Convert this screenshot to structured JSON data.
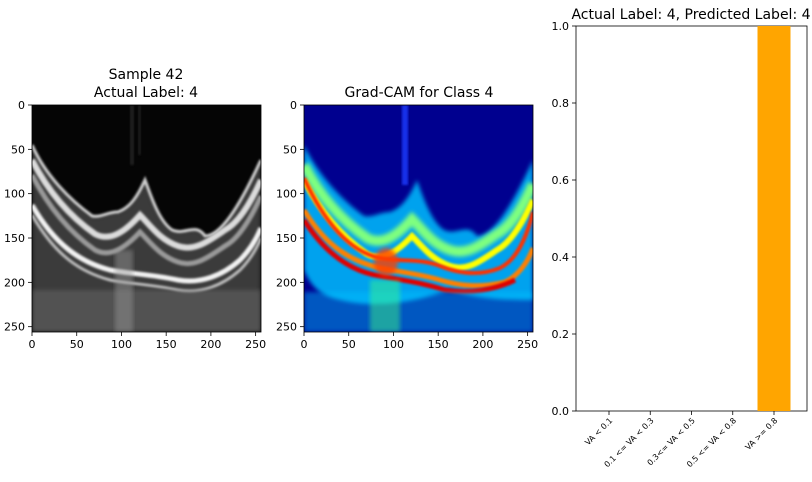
{
  "chart_data": [
    {
      "type": "heatmap",
      "title_lines": [
        "Sample 42",
        "Actual Label: 4"
      ],
      "colormap": "gray",
      "xticks": [
        0,
        50,
        100,
        150,
        200,
        250
      ],
      "yticks": [
        0,
        50,
        100,
        150,
        200,
        250
      ],
      "extent": [
        0,
        256
      ]
    },
    {
      "type": "heatmap",
      "title": "Grad-CAM for Class 4",
      "colormap": "jet",
      "xticks": [
        0,
        50,
        100,
        150,
        200,
        250
      ],
      "yticks": [
        0,
        50,
        100,
        150,
        200,
        250
      ],
      "extent": [
        0,
        256
      ]
    },
    {
      "type": "bar",
      "title": "Actual Label: 4, Predicted Label: 4",
      "categories": [
        "VA < 0.1",
        "0.1 <= VA < 0.3",
        "0.3<= VA < 0.5",
        "0.5 <= VA < 0.8",
        "VA >= 0.8"
      ],
      "values": [
        0,
        0,
        0,
        0,
        1.0
      ],
      "bar_color": "#ffa500",
      "ylim": [
        0,
        1.0
      ],
      "yticks": [
        "0.0",
        "0.2",
        "0.4",
        "0.6",
        "0.8",
        "1.0"
      ],
      "grid": false
    }
  ]
}
